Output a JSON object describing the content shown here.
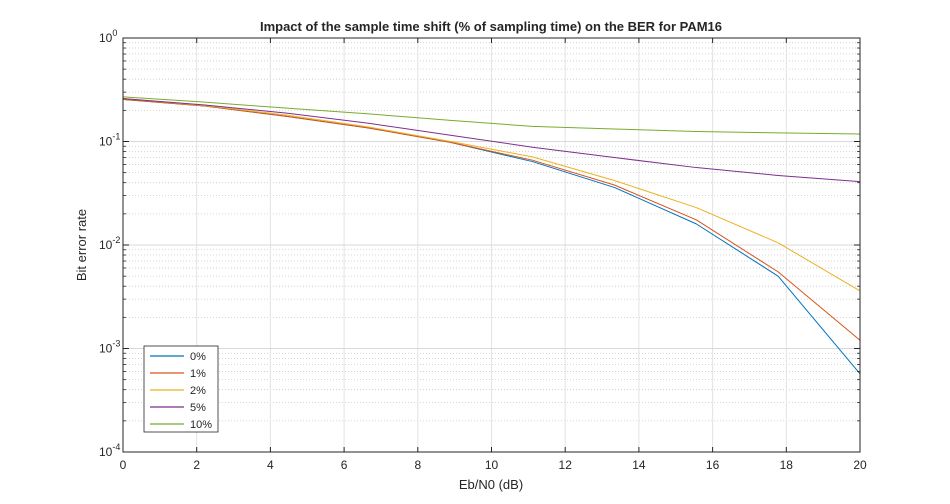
{
  "chart_data": {
    "type": "line",
    "title": "Impact of the sample time shift (% of sampling time) on the BER for PAM16",
    "xlabel": "Eb/N0 (dB)",
    "ylabel": "Bit error rate",
    "xlim": [
      0,
      20
    ],
    "ylim": [
      0.0001,
      1
    ],
    "yscale": "log",
    "grid": true,
    "legend_position": "bottom-left",
    "x_ticks": [
      "0",
      "2",
      "4",
      "6",
      "8",
      "10",
      "12",
      "14",
      "16",
      "18",
      "20"
    ],
    "y_ticks": [
      {
        "base": "10",
        "exp": "0"
      },
      {
        "base": "10",
        "exp": "-1"
      },
      {
        "base": "10",
        "exp": "-2"
      },
      {
        "base": "10",
        "exp": "-3"
      },
      {
        "base": "10",
        "exp": "-4"
      }
    ],
    "x": [
      0,
      2.222,
      4.444,
      6.667,
      8.889,
      11.111,
      13.333,
      15.556,
      17.778,
      20
    ],
    "series": [
      {
        "name": "0%",
        "color": "#0072BD",
        "values": [
          0.255,
          0.22,
          0.175,
          0.135,
          0.098,
          0.064,
          0.036,
          0.016,
          0.005,
          0.00057
        ]
      },
      {
        "name": "1%",
        "color": "#D95319",
        "values": [
          0.255,
          0.22,
          0.175,
          0.135,
          0.098,
          0.066,
          0.038,
          0.0175,
          0.0055,
          0.0012
        ]
      },
      {
        "name": "2%",
        "color": "#EDB120",
        "values": [
          0.26,
          0.222,
          0.18,
          0.138,
          0.1,
          0.071,
          0.042,
          0.023,
          0.0105,
          0.0036
        ]
      },
      {
        "name": "5%",
        "color": "#7E2F8E",
        "values": [
          0.26,
          0.225,
          0.188,
          0.15,
          0.115,
          0.088,
          0.07,
          0.056,
          0.047,
          0.041
        ]
      },
      {
        "name": "10%",
        "color": "#77AC30",
        "values": [
          0.27,
          0.24,
          0.21,
          0.185,
          0.16,
          0.14,
          0.132,
          0.125,
          0.121,
          0.118
        ]
      }
    ]
  }
}
